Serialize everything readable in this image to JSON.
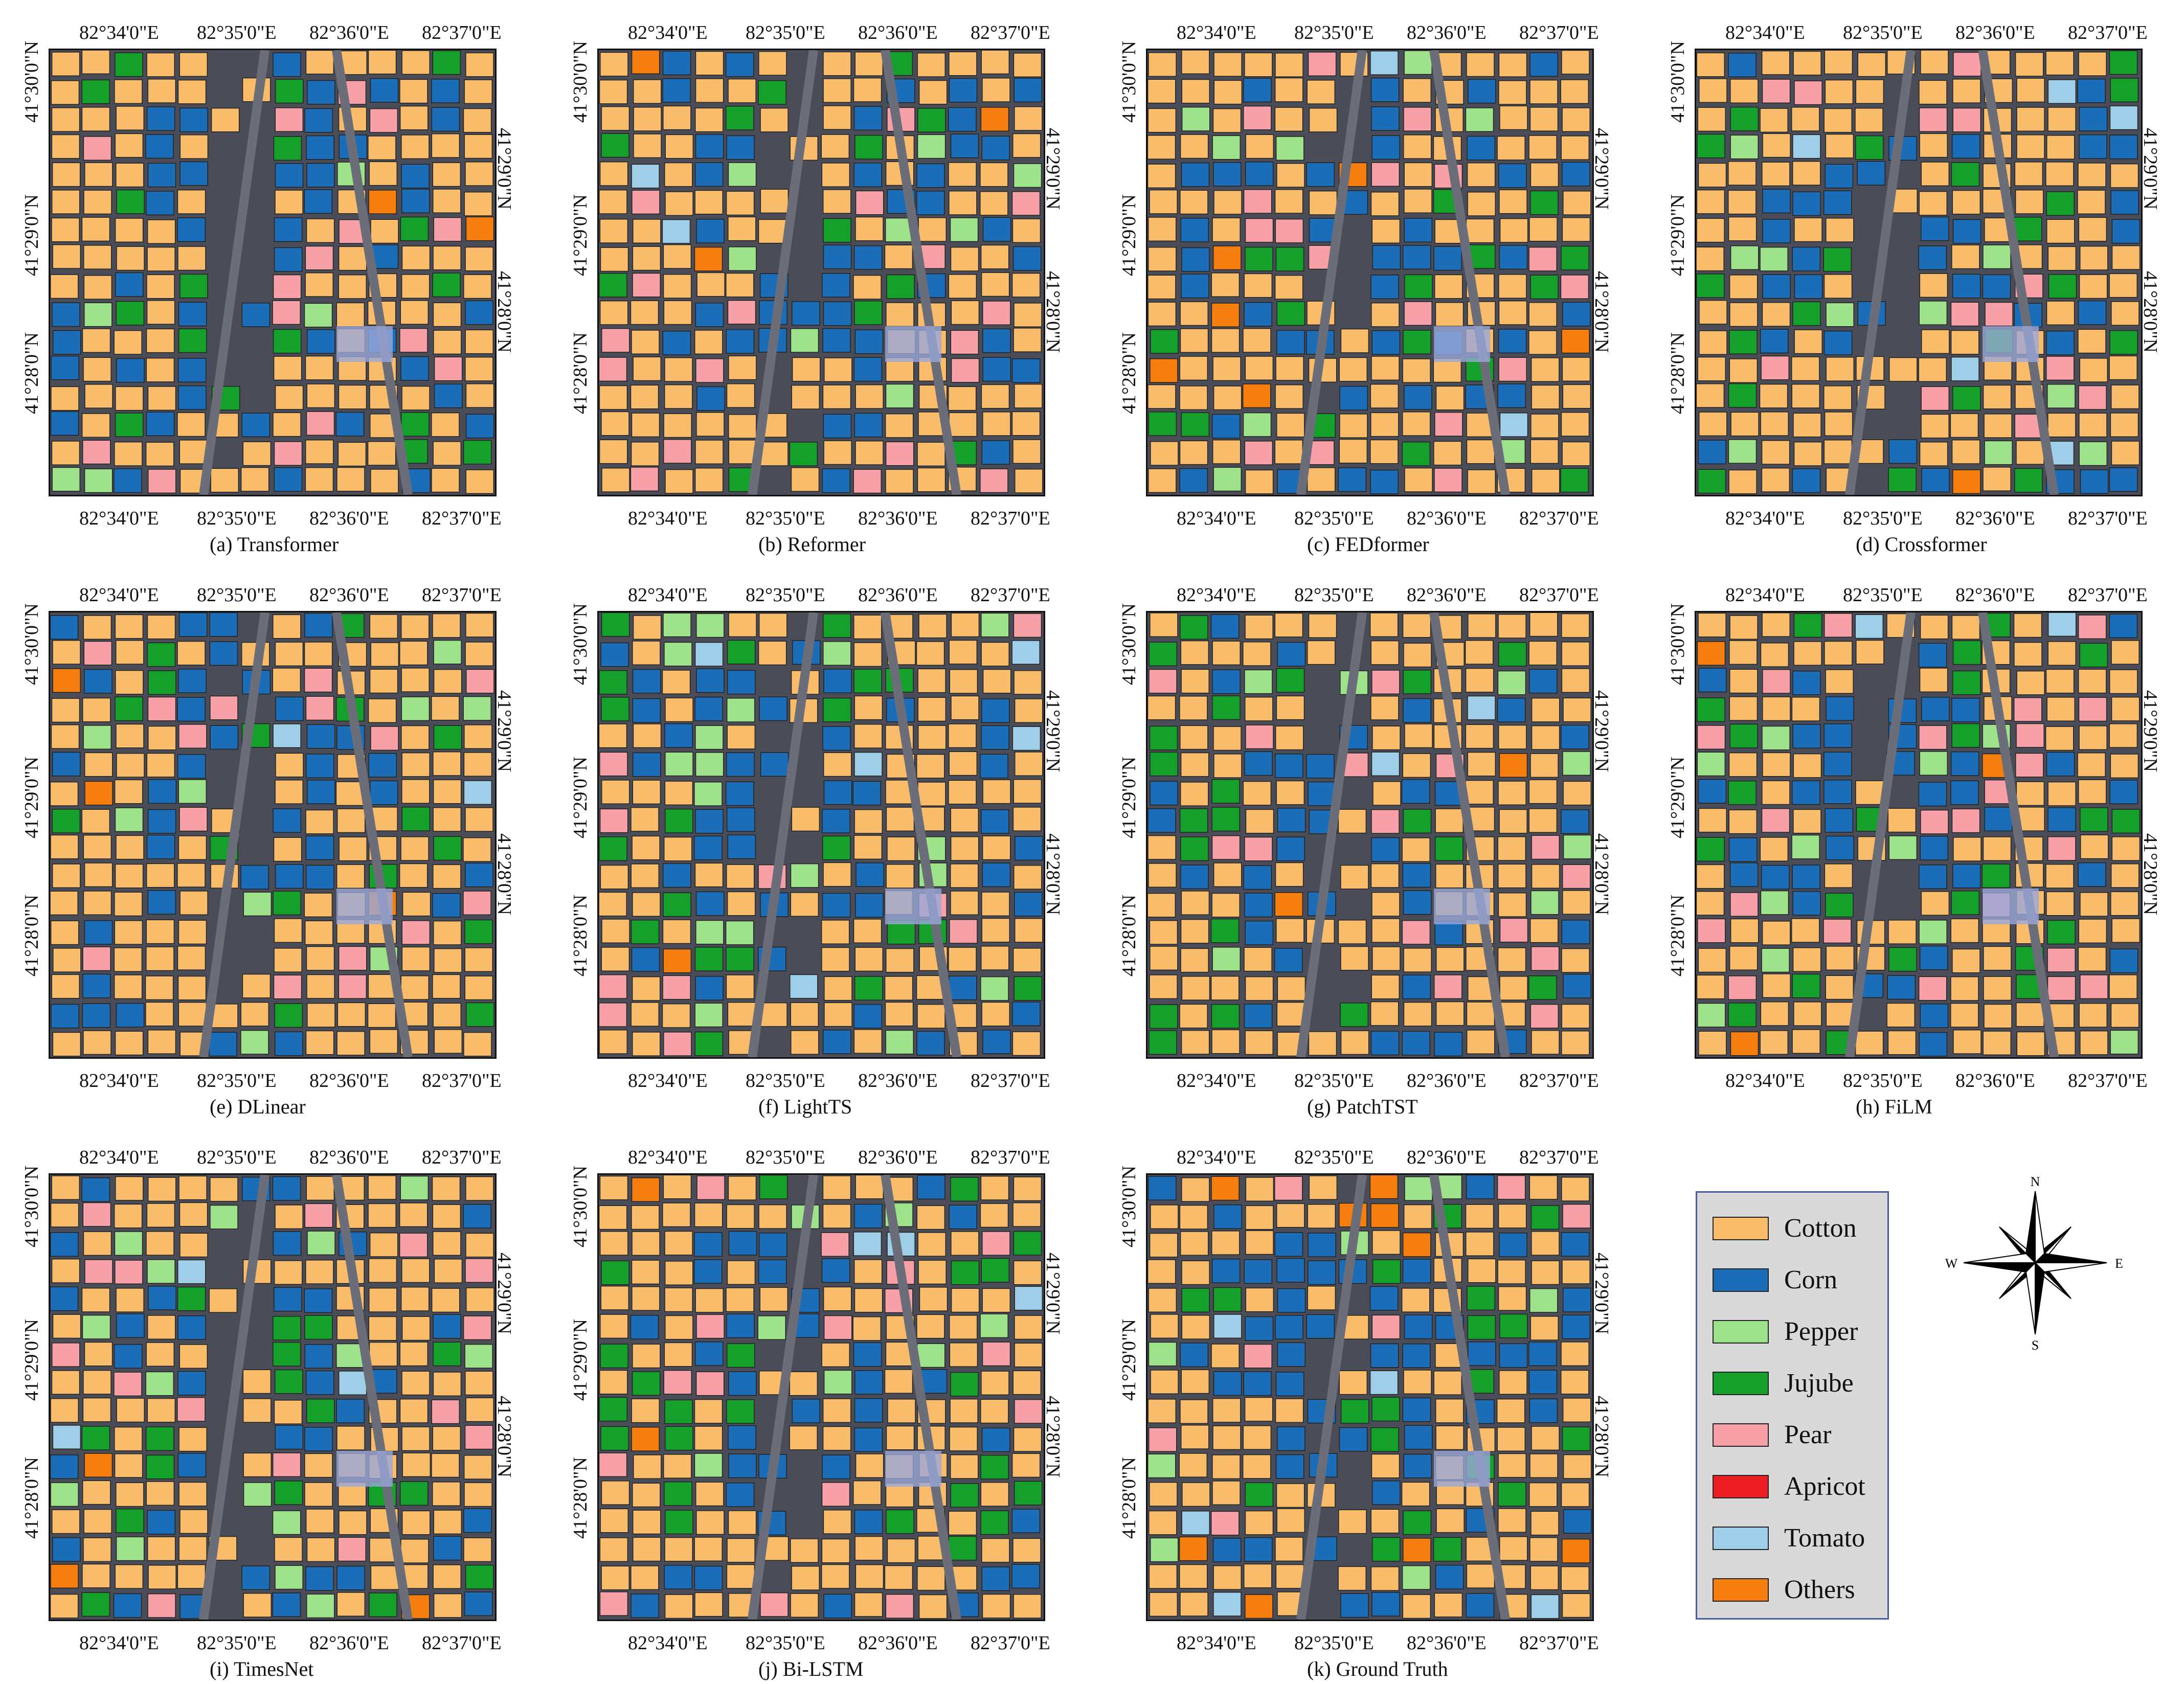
{
  "figure": {
    "panels": [
      {
        "id": "a",
        "caption": "(a) Transformer"
      },
      {
        "id": "b",
        "caption": "(b) Reformer"
      },
      {
        "id": "c",
        "caption": "(c) FEDformer"
      },
      {
        "id": "d",
        "caption": "(d) Crossformer"
      },
      {
        "id": "e",
        "caption": "(e) DLinear"
      },
      {
        "id": "f",
        "caption": "(f) LightTS"
      },
      {
        "id": "g",
        "caption": "(g) PatchTST"
      },
      {
        "id": "h",
        "caption": "(h) FiLM"
      },
      {
        "id": "i",
        "caption": "(i) TimesNet"
      },
      {
        "id": "j",
        "caption": "(j) Bi-LSTM"
      },
      {
        "id": "k",
        "caption": "(k) Ground Truth"
      }
    ],
    "lon_ticks": [
      "82°34'0\"E",
      "82°35'0\"E",
      "82°36'0\"E",
      "82°37'0\"E"
    ],
    "lat_ticks_left": [
      "41°30'0\"N",
      "41°29'0\"N",
      "41°28'0\"N"
    ],
    "lat_ticks_right": [
      "41°29'0\"N",
      "41°28'0\"N"
    ]
  },
  "legend": {
    "items": [
      {
        "label": "Cotton",
        "color": "#f8bc6a"
      },
      {
        "label": "Corn",
        "color": "#1c6db8"
      },
      {
        "label": "Pepper",
        "color": "#9fe28c"
      },
      {
        "label": "Jujube",
        "color": "#14a02a"
      },
      {
        "label": "Pear",
        "color": "#f7a0a8"
      },
      {
        "label": "Apricot",
        "color": "#ee1d23"
      },
      {
        "label": "Tomato",
        "color": "#9fcfe8"
      },
      {
        "label": "Others",
        "color": "#f57e0f"
      }
    ]
  },
  "compass": {
    "n": "N",
    "s": "S",
    "e": "E",
    "w": "W"
  }
}
